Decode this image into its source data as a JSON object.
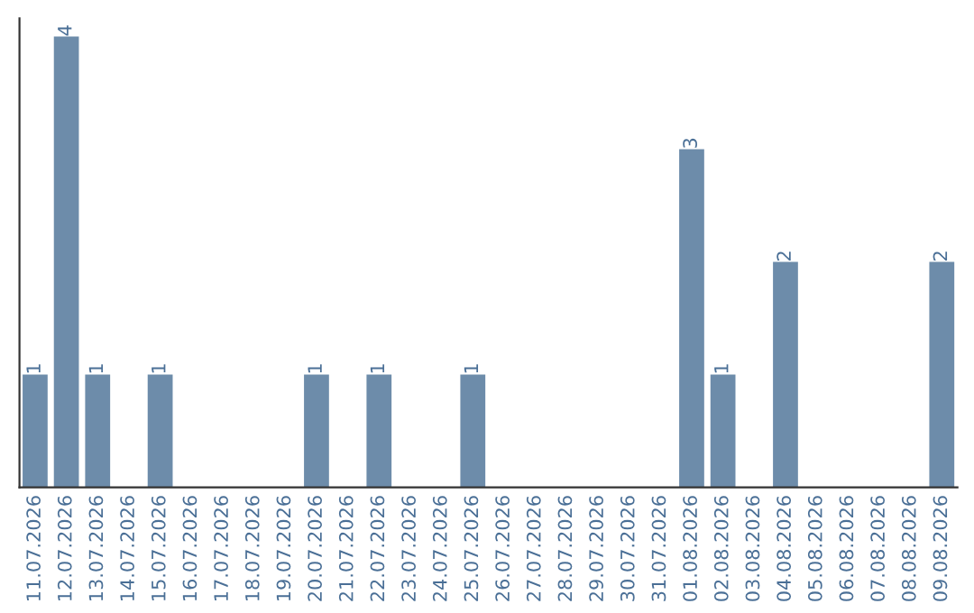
{
  "chart_data": {
    "type": "bar",
    "categories": [
      "11.07.2026",
      "12.07.2026",
      "13.07.2026",
      "14.07.2026",
      "15.07.2026",
      "16.07.2026",
      "17.07.2026",
      "18.07.2026",
      "19.07.2026",
      "20.07.2026",
      "21.07.2026",
      "22.07.2026",
      "23.07.2026",
      "24.07.2026",
      "25.07.2026",
      "26.07.2026",
      "27.07.2026",
      "28.07.2026",
      "29.07.2026",
      "30.07.2026",
      "31.07.2026",
      "01.08.2026",
      "02.08.2026",
      "03.08.2026",
      "04.08.2026",
      "05.08.2026",
      "06.08.2026",
      "07.08.2026",
      "08.08.2026",
      "09.08.2026"
    ],
    "values": [
      1,
      4,
      1,
      0,
      1,
      0,
      0,
      0,
      0,
      1,
      0,
      1,
      0,
      0,
      1,
      0,
      0,
      0,
      0,
      0,
      0,
      3,
      1,
      0,
      2,
      0,
      0,
      0,
      0,
      2
    ],
    "value_labels": [
      "1",
      "4",
      "1",
      null,
      "1",
      null,
      null,
      null,
      null,
      "1",
      null,
      "1",
      null,
      null,
      "1",
      null,
      null,
      null,
      null,
      null,
      null,
      "3",
      "1",
      null,
      "2",
      null,
      null,
      null,
      null,
      "2"
    ],
    "color": "#6d8caa",
    "grid": false,
    "tick_labels": "x"
  }
}
